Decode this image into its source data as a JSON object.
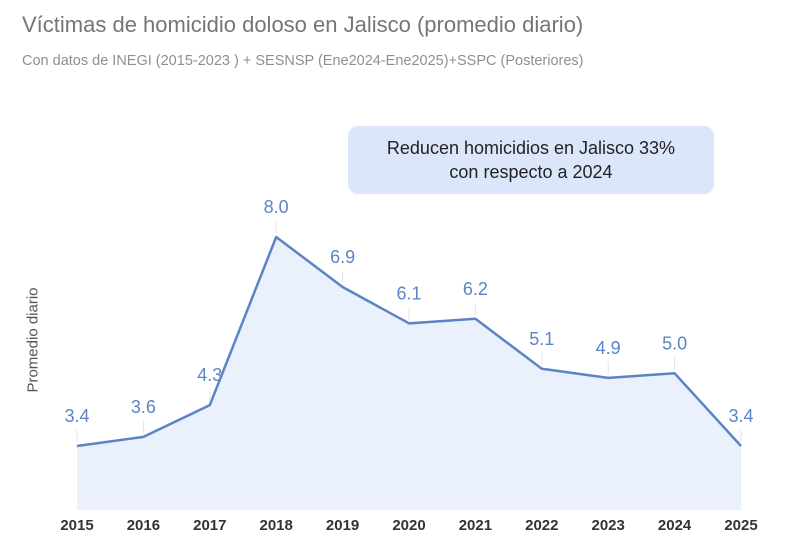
{
  "chart_data": {
    "type": "area",
    "title": "Víctimas de homicidio doloso en Jalisco (promedio diario)",
    "subtitle": "Con datos de INEGI (2015-2023 ) + SESNSP (Ene2024-Ene2025)+SSPC (Posteriores)",
    "ylabel": "Promedio diario",
    "xlabel": "",
    "categories": [
      "2015",
      "2016",
      "2017",
      "2018",
      "2019",
      "2020",
      "2021",
      "2022",
      "2023",
      "2024",
      "2025"
    ],
    "values": [
      3.4,
      3.6,
      4.3,
      8.0,
      6.9,
      6.1,
      6.2,
      5.1,
      4.9,
      5.0,
      3.4
    ],
    "data_labels": [
      "3.4",
      "3.6",
      "4.3",
      "8.0",
      "6.9",
      "6.1",
      "6.2",
      "5.1",
      "4.9",
      "5.0",
      "3.4"
    ],
    "annotation": "Reducen homicidios en Jalisco 33%\ncon respecto a 2024",
    "grid": false,
    "legend": "none",
    "colors": {
      "line": "#5b84c4",
      "fill": "#eaf1fc",
      "label": "#5b84c4",
      "annotation_bg": "#dce6fb"
    }
  }
}
